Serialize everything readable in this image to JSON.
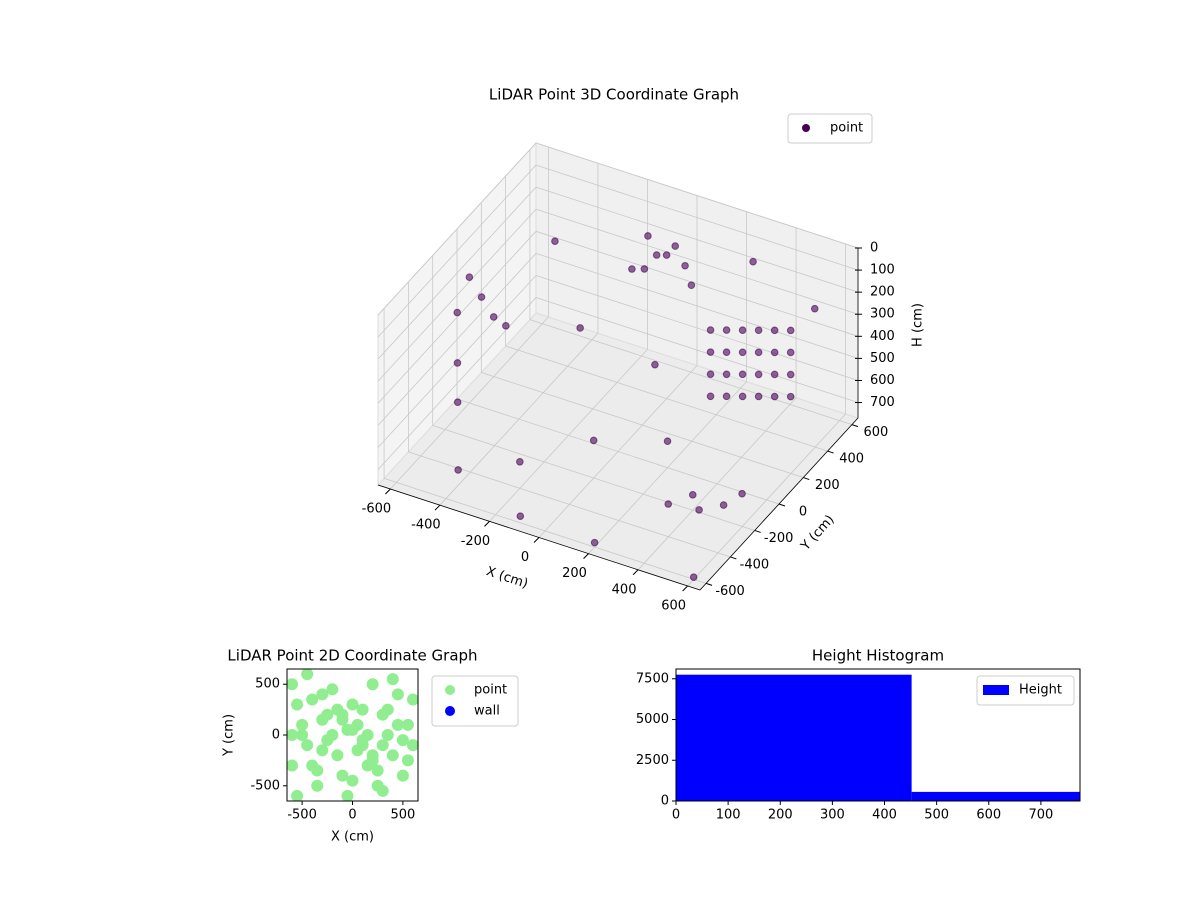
{
  "chart_data": [
    {
      "type": "scatter3d",
      "title": "LiDAR Point 3D Coordinate Graph",
      "xlabel": "X (cm)",
      "ylabel": "Y (cm)",
      "zlabel": "H (cm)",
      "legend": [
        "point"
      ],
      "legend_loc": "upper right",
      "color": "#440154",
      "grid": true,
      "xlim": [
        -650,
        650
      ],
      "ylim": [
        -650,
        650
      ],
      "zlim": [
        770,
        0
      ],
      "xticks": [
        -600,
        -400,
        -200,
        0,
        200,
        400,
        600
      ],
      "yticks": [
        -600,
        -400,
        -200,
        0,
        200,
        400,
        600
      ],
      "zticks": [
        0,
        100,
        200,
        300,
        400,
        500,
        600,
        700
      ],
      "x": [
        300,
        300,
        300,
        300,
        350,
        350,
        350,
        350,
        400,
        400,
        400,
        400,
        450,
        450,
        450,
        450,
        500,
        500,
        500,
        500,
        550,
        550,
        550,
        550,
        -100,
        -50,
        0,
        50,
        -80,
        20,
        100,
        -150,
        -600,
        -600,
        -600,
        -550,
        -600,
        -500,
        -600,
        400,
        450,
        500,
        350,
        550,
        -400,
        -200,
        0,
        200,
        -300,
        100,
        -500,
        300,
        500,
        600,
        -100,
        200
      ],
      "y": [
        150,
        150,
        150,
        150,
        180,
        180,
        180,
        180,
        210,
        210,
        210,
        210,
        240,
        240,
        240,
        240,
        270,
        270,
        270,
        270,
        300,
        300,
        300,
        300,
        450,
        420,
        400,
        450,
        380,
        430,
        400,
        420,
        -100,
        0,
        100,
        -200,
        200,
        -300,
        300,
        -200,
        -250,
        -150,
        -300,
        -100,
        -500,
        -400,
        -200,
        -600,
        300,
        100,
        500,
        500,
        600,
        -600,
        -600,
        0
      ],
      "z": [
        200,
        300,
        400,
        500,
        200,
        300,
        400,
        500,
        200,
        300,
        400,
        500,
        200,
        300,
        400,
        500,
        200,
        300,
        400,
        500,
        200,
        300,
        400,
        500,
        100,
        150,
        120,
        180,
        200,
        90,
        220,
        250,
        300,
        200,
        350,
        450,
        500,
        550,
        600,
        700,
        720,
        740,
        700,
        700,
        700,
        650,
        600,
        750,
        500,
        400,
        300,
        100,
        300,
        760,
        740,
        650
      ]
    },
    {
      "type": "scatter",
      "title": "LiDAR Point 2D Coordinate Graph",
      "xlabel": "X (cm)",
      "ylabel": "Y (cm)",
      "legend_loc": "outside right",
      "xlim": [
        -650,
        650
      ],
      "ylim": [
        -650,
        650
      ],
      "xticks": [
        -500,
        0,
        500
      ],
      "yticks": [
        -500,
        0,
        500
      ],
      "series": [
        {
          "name": "point",
          "color": "#90ee90",
          "x": [
            -600,
            -550,
            -500,
            -450,
            -400,
            -350,
            -300,
            -250,
            -200,
            -150,
            -100,
            -50,
            0,
            50,
            100,
            150,
            200,
            250,
            300,
            350,
            400,
            450,
            500,
            550,
            600,
            -600,
            -500,
            -400,
            -300,
            -200,
            -100,
            0,
            100,
            200,
            300,
            400,
            500,
            600,
            -550,
            -450,
            -350,
            -250,
            -150,
            -50,
            50,
            150,
            250,
            350,
            450,
            550,
            -600,
            0,
            100,
            -300,
            300,
            -100,
            200
          ],
          "y": [
            500,
            300,
            100,
            -100,
            -300,
            -500,
            400,
            200,
            0,
            -200,
            -400,
            -600,
            300,
            100,
            -100,
            -300,
            500,
            -500,
            200,
            0,
            -200,
            400,
            -400,
            100,
            -100,
            -300,
            0,
            350,
            -150,
            450,
            150,
            -450,
            250,
            -250,
            -550,
            550,
            -50,
            350,
            -600,
            600,
            -350,
            -50,
            250,
            50,
            -150,
            0,
            -350,
            250,
            100,
            -250,
            0,
            50,
            -50,
            150,
            -100,
            200,
            -200
          ]
        },
        {
          "name": "wall",
          "color": "#0000ff",
          "x": [],
          "y": []
        }
      ]
    },
    {
      "type": "histogram",
      "title": "Height Histogram",
      "legend": [
        "Height"
      ],
      "legend_loc": "upper right",
      "color": "#0000ff",
      "bins": [
        0,
        452,
        775
      ],
      "counts": [
        7750,
        560
      ],
      "xlim": [
        0,
        775
      ],
      "ylim": [
        0,
        8100
      ],
      "xticks": [
        0,
        100,
        200,
        300,
        400,
        500,
        600,
        700
      ],
      "yticks": [
        0,
        2500,
        5000,
        7500
      ]
    }
  ]
}
